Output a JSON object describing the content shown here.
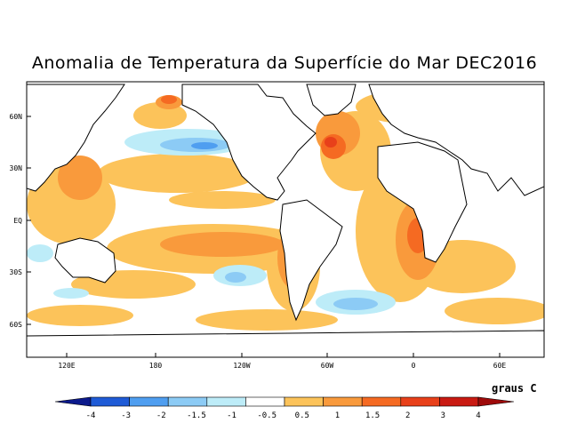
{
  "title": "Anomalia de Temperatura da Superfície do Mar DEC2016",
  "lat_labels": [
    "60N",
    "30N",
    "EQ",
    "30S",
    "60S"
  ],
  "lon_labels": [
    "120E",
    "180",
    "120W",
    "60W",
    "0",
    "60E"
  ],
  "legend": {
    "units": "graus C",
    "ticks": [
      "-4",
      "-3",
      "-2",
      "-1.5",
      "-1",
      "-0.5",
      "0.5",
      "1",
      "1.5",
      "2",
      "3",
      "4"
    ],
    "colors": [
      "#0c1a8c",
      "#1f5bd6",
      "#4f9ef0",
      "#8ccbf5",
      "#bdecf8",
      "#ffffff",
      "#fcc35a",
      "#f99a3c",
      "#f56a22",
      "#e8401a",
      "#c91a12",
      "#9e0a0a"
    ]
  },
  "colors": {
    "land": "#ffffff",
    "coast": "#000000"
  }
}
